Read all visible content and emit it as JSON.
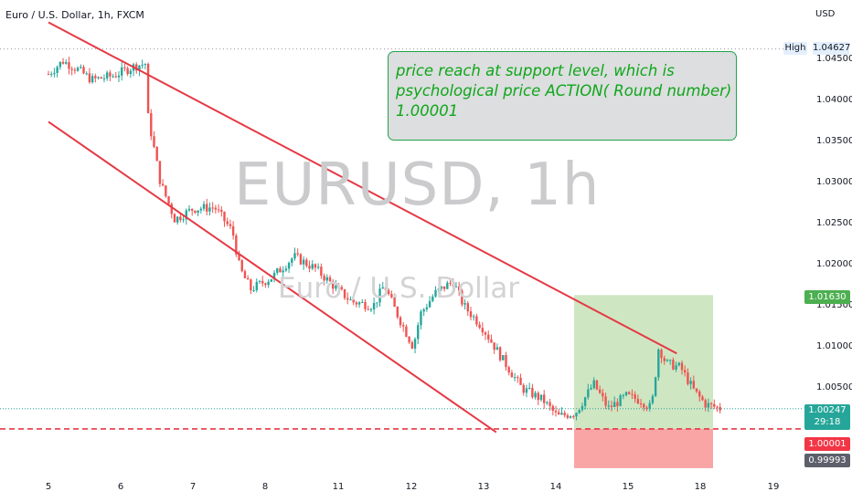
{
  "header": {
    "symbol_line": "Euro / U.S. Dollar, 1h, FXCM",
    "currency": "USD"
  },
  "watermark": {
    "main": "EURUSD, 1h",
    "sub": "Euro / U.S. Dollar"
  },
  "annotation": {
    "line1": "price reach at support level, which is",
    "line2": "psychological price ACTION( Round number)",
    "line3": "1.00001"
  },
  "price_labels": {
    "high_label": "High",
    "high_value": "1.04627",
    "target": "1.01630",
    "current": "1.00247",
    "countdown": "29:18",
    "entry": "1.00001",
    "stop": "0.99993"
  },
  "colors": {
    "up": "#26a69a",
    "down": "#ef5350",
    "trendline": "#e53944",
    "profit_zone": "#cfe6c2",
    "loss_zone": "#f9a5a6",
    "target_badge": "#4caf50",
    "entry_badge": "#f23645",
    "stop_badge": "#5d606b",
    "current_badge": "#26a69a"
  },
  "chart_data": {
    "type": "candlestick",
    "title": "Euro / U.S. Dollar, 1h, FXCM",
    "y_ticks": [
      "1.04500",
      "1.04000",
      "1.03500",
      "1.03000",
      "1.02500",
      "1.02000",
      "1.01500",
      "1.01000",
      "1.00500"
    ],
    "x_ticks": [
      "5",
      "6",
      "7",
      "8",
      "11",
      "12",
      "13",
      "14",
      "15",
      "18",
      "19"
    ],
    "ylim": [
      0.9985,
      1.048
    ],
    "session_high": 1.04627,
    "close_path": [
      {
        "t": 0.0,
        "p": 1.0432
      },
      {
        "t": 0.2,
        "p": 1.0448
      },
      {
        "t": 0.4,
        "p": 1.0438
      },
      {
        "t": 0.6,
        "p": 1.0425
      },
      {
        "t": 0.9,
        "p": 1.043
      },
      {
        "t": 1.2,
        "p": 1.0442
      },
      {
        "t": 1.35,
        "p": 1.0445
      },
      {
        "t": 1.38,
        "p": 1.038
      },
      {
        "t": 1.55,
        "p": 1.03
      },
      {
        "t": 1.75,
        "p": 1.0255
      },
      {
        "t": 2.0,
        "p": 1.0268
      },
      {
        "t": 2.3,
        "p": 1.027
      },
      {
        "t": 2.55,
        "p": 1.024
      },
      {
        "t": 2.65,
        "p": 1.0195
      },
      {
        "t": 2.8,
        "p": 1.017
      },
      {
        "t": 3.1,
        "p": 1.0185
      },
      {
        "t": 3.4,
        "p": 1.021
      },
      {
        "t": 3.7,
        "p": 1.0195
      },
      {
        "t": 4.0,
        "p": 1.017
      },
      {
        "t": 4.2,
        "p": 1.0155
      },
      {
        "t": 4.5,
        "p": 1.015
      },
      {
        "t": 4.65,
        "p": 1.0175
      },
      {
        "t": 4.8,
        "p": 1.0145
      },
      {
        "t": 5.05,
        "p": 1.01
      },
      {
        "t": 5.15,
        "p": 1.014
      },
      {
        "t": 5.35,
        "p": 1.0165
      },
      {
        "t": 5.6,
        "p": 1.018
      },
      {
        "t": 5.75,
        "p": 1.015
      },
      {
        "t": 6.0,
        "p": 1.0125
      },
      {
        "t": 6.25,
        "p": 1.009
      },
      {
        "t": 6.55,
        "p": 1.005
      },
      {
        "t": 6.85,
        "p": 1.0035
      },
      {
        "t": 7.05,
        "p": 1.0015
      },
      {
        "t": 7.3,
        "p": 1.002
      },
      {
        "t": 7.55,
        "p": 1.0055
      },
      {
        "t": 7.75,
        "p": 1.0025
      },
      {
        "t": 8.0,
        "p": 1.004
      },
      {
        "t": 8.2,
        "p": 1.0035
      },
      {
        "t": 8.35,
        "p": 1.0025
      },
      {
        "t": 8.45,
        "p": 1.01
      },
      {
        "t": 8.55,
        "p": 1.008
      },
      {
        "t": 8.75,
        "p": 1.0075
      },
      {
        "t": 8.95,
        "p": 1.0045
      },
      {
        "t": 9.1,
        "p": 1.003
      },
      {
        "t": 9.3,
        "p": 1.0025
      }
    ],
    "upper_trendline": [
      {
        "t": 0.0,
        "p": 1.0495
      },
      {
        "t": 8.7,
        "p": 1.0092
      }
    ],
    "lower_trendline": [
      {
        "t": 0.0,
        "p": 1.0374
      },
      {
        "t": 6.2,
        "p": 0.9996
      }
    ],
    "position": {
      "type": "long",
      "entry": 1.00001,
      "target": 1.0163,
      "stop": 0.99993,
      "last": 1.00247
    }
  }
}
